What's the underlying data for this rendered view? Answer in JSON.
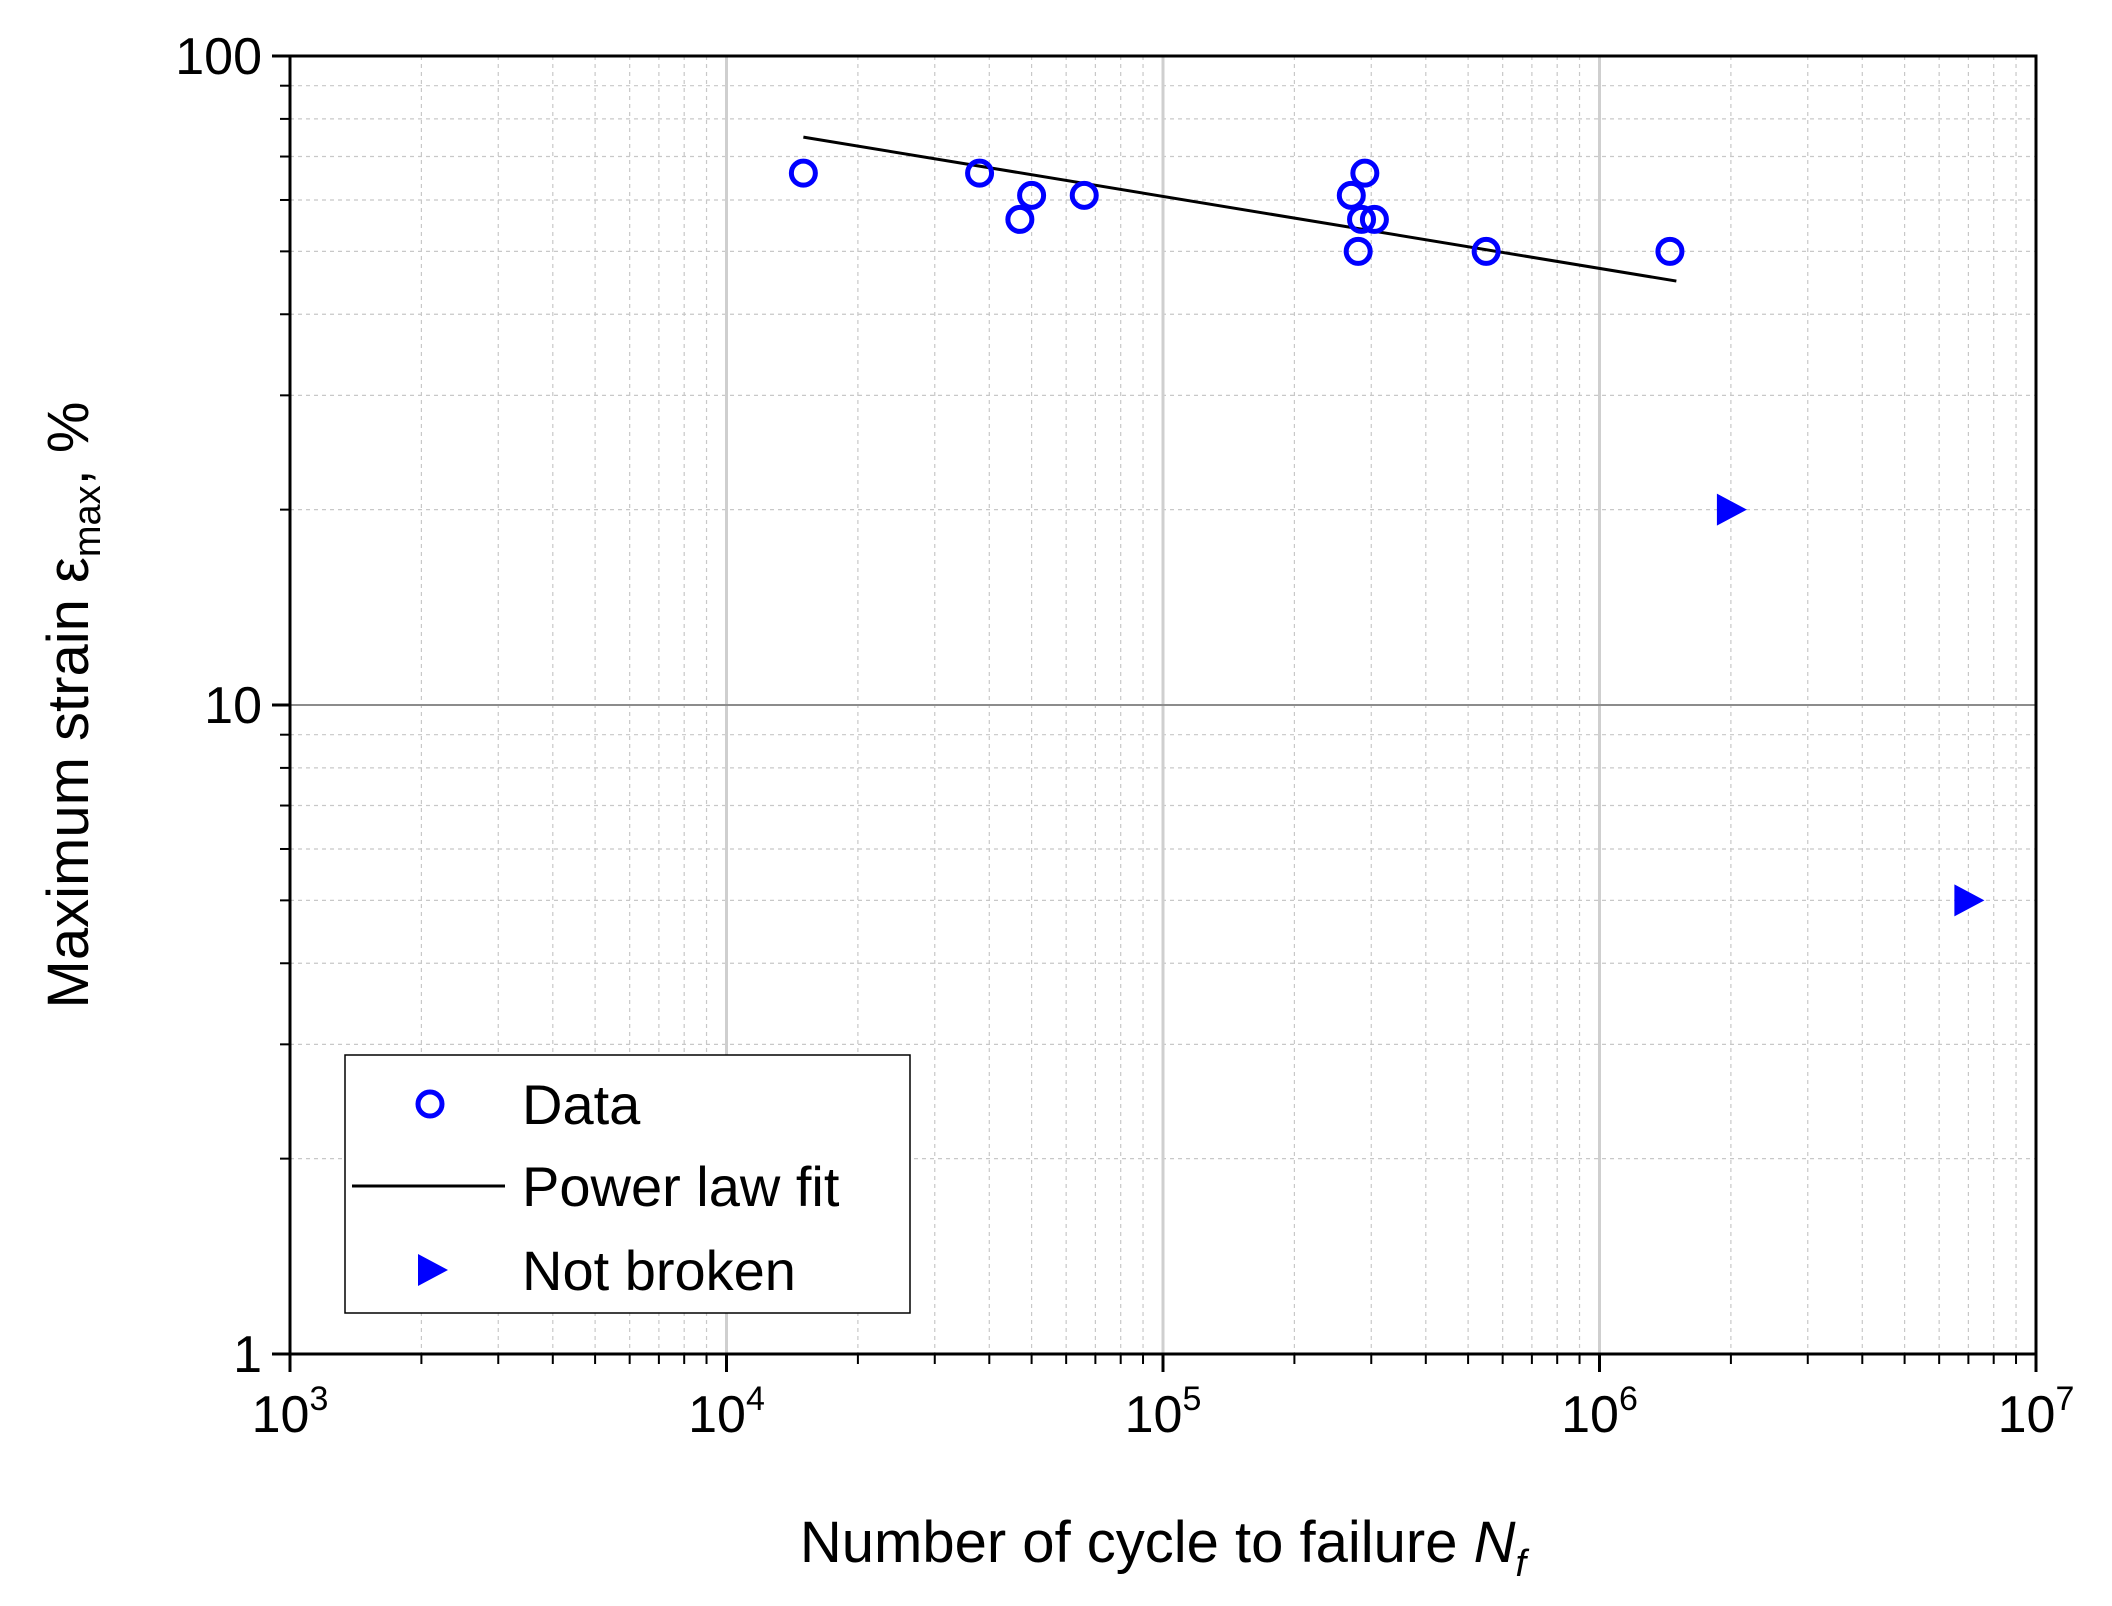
{
  "chart_data": {
    "type": "scatter",
    "x_scale": "log",
    "y_scale": "log",
    "xlim": [
      1000,
      10000000
    ],
    "ylim": [
      1,
      100
    ],
    "x_ticks": [
      {
        "value": 1000,
        "base": "10",
        "exp": "3"
      },
      {
        "value": 10000,
        "base": "10",
        "exp": "4"
      },
      {
        "value": 100000,
        "base": "10",
        "exp": "5"
      },
      {
        "value": 1000000,
        "base": "10",
        "exp": "6"
      },
      {
        "value": 10000000,
        "base": "10",
        "exp": "7"
      }
    ],
    "y_ticks": [
      {
        "value": 1,
        "label": "1"
      },
      {
        "value": 10,
        "label": "10"
      },
      {
        "value": 100,
        "label": "100"
      }
    ],
    "xlabel": {
      "text": "Number of cycle to failure ",
      "italic": "N",
      "sub": "f"
    },
    "ylabel": {
      "text": "Maximum strain ε",
      "sub": "max",
      "suffix": ", %"
    },
    "grid": true,
    "legend_position": "bottom-left",
    "series": [
      {
        "name": "Data",
        "kind": "scatter",
        "marker": "open-circle",
        "color": "#0000ff",
        "x": [
          15000,
          38000,
          47000,
          50000,
          66000,
          270000,
          280000,
          285000,
          290000,
          305000,
          550000,
          1450000
        ],
        "y": [
          66,
          66,
          56,
          61,
          61,
          61,
          50,
          56,
          66,
          56,
          50,
          50
        ]
      },
      {
        "name": "Power law fit",
        "kind": "line",
        "color": "#000000",
        "x": [
          15000,
          1500000
        ],
        "y": [
          75,
          45
        ]
      },
      {
        "name": "Not broken",
        "kind": "scatter",
        "marker": "right-triangle",
        "color": "#0000ff",
        "x": [
          2000000,
          7000000
        ],
        "y": [
          20,
          5
        ]
      }
    ]
  }
}
